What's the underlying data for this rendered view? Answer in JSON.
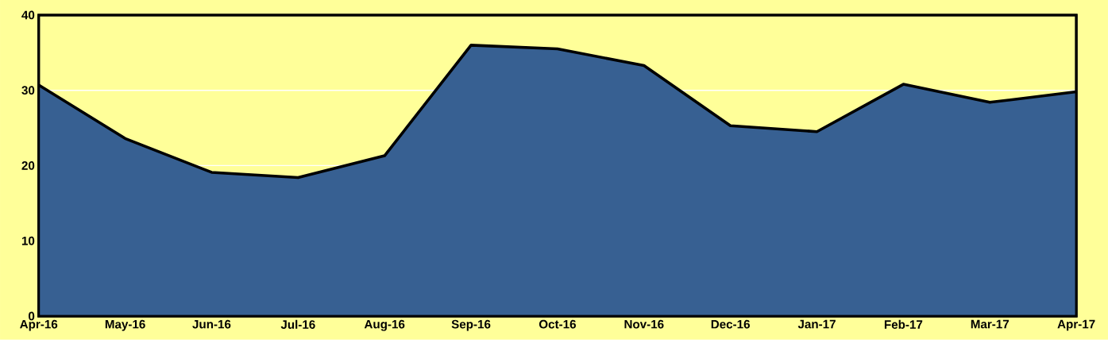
{
  "chart_data": {
    "type": "area",
    "categories": [
      "Apr-16",
      "May-16",
      "Jun-16",
      "Jul-16",
      "Aug-16",
      "Sep-16",
      "Oct-16",
      "Nov-16",
      "Dec-16",
      "Jan-17",
      "Feb-17",
      "Mar-17",
      "Apr-17"
    ],
    "series": [
      {
        "color": "#376092",
        "values": [
          30.7,
          23.6,
          19.1,
          18.4,
          21.3,
          36.0,
          35.5,
          33.3,
          25.3,
          24.5,
          30.8,
          28.4,
          29.8
        ]
      }
    ],
    "ylim": [
      0,
      40
    ],
    "yticks": [
      0,
      10,
      20,
      30,
      40
    ],
    "grid": "y",
    "line_style": "solid",
    "marker": "none"
  }
}
